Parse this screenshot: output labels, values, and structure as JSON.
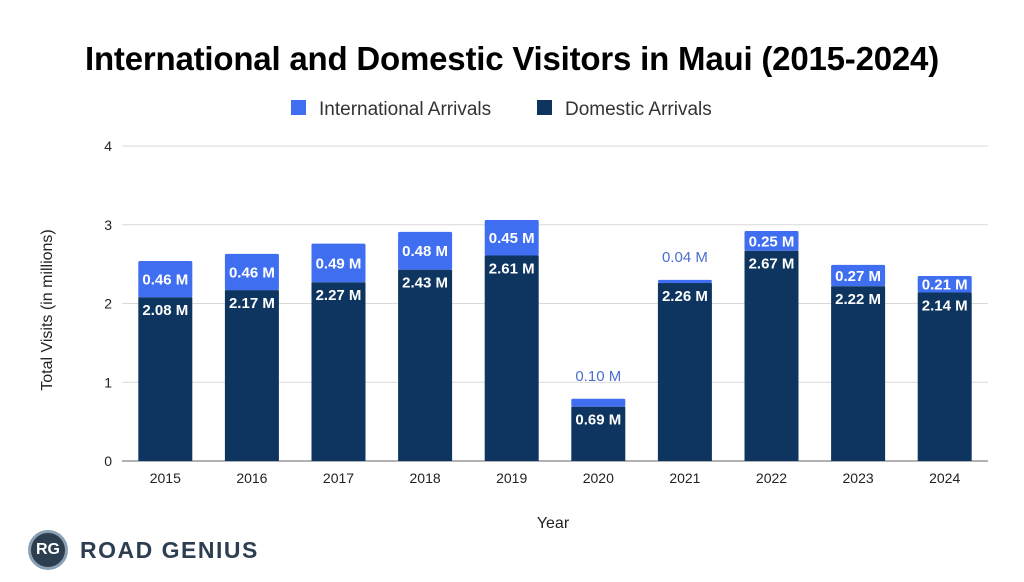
{
  "chart_data": {
    "type": "bar",
    "stacked": true,
    "title": "International and Domestic Visitors in Maui (2015-2024)",
    "xlabel": "Year",
    "ylabel": "Total Visits (in millions)",
    "ylim": [
      0,
      4
    ],
    "yticks": [
      "0",
      "1",
      "2",
      "3",
      "4"
    ],
    "grid": true,
    "legend_position": "top",
    "categories": [
      "2015",
      "2016",
      "2017",
      "2018",
      "2019",
      "2020",
      "2021",
      "2022",
      "2023",
      "2024"
    ],
    "series": [
      {
        "name": "Domestic Arrivals",
        "color": "#0d3560",
        "values": [
          2.08,
          2.17,
          2.27,
          2.43,
          2.61,
          0.69,
          2.26,
          2.67,
          2.22,
          2.14
        ],
        "labels": [
          "2.08 M",
          "2.17 M",
          "2.27 M",
          "2.43 M",
          "2.61 M",
          "0.69 M",
          "2.26 M",
          "2.67 M",
          "2.22 M",
          "2.14 M"
        ]
      },
      {
        "name": "International Arrivals",
        "color": "#3f6ff0",
        "values": [
          0.46,
          0.46,
          0.49,
          0.48,
          0.45,
          0.1,
          0.04,
          0.25,
          0.27,
          0.21
        ],
        "labels": [
          "0.46 M",
          "0.46 M",
          "0.49 M",
          "0.48 M",
          "0.45 M",
          "0.10 M",
          "0.04 M",
          "0.25 M",
          "0.27 M",
          "0.21 M"
        ]
      }
    ]
  },
  "logo": {
    "badge": "RG",
    "text": "ROAD GENIUS"
  }
}
